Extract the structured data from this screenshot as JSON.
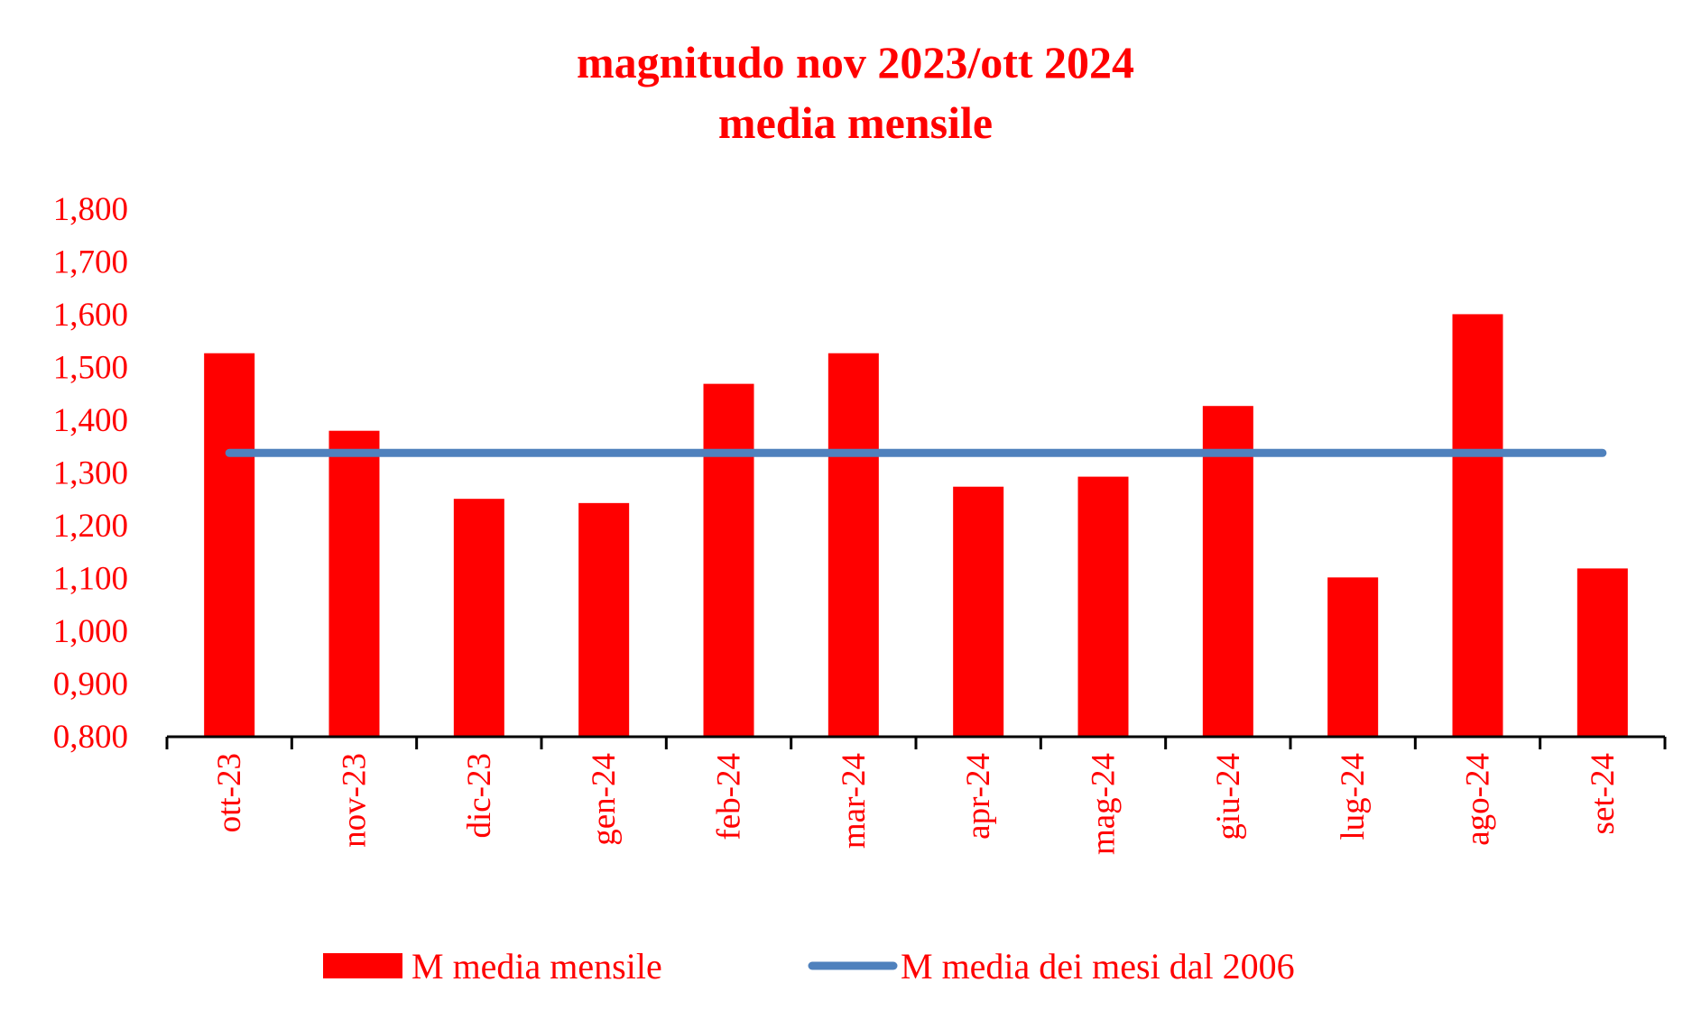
{
  "chart_data": {
    "type": "bar",
    "title": [
      "magnitudo nov 2023/ott 2024",
      "media mensile"
    ],
    "xlabel": "",
    "ylabel": "",
    "categories": [
      "ott-23",
      "nov-23",
      "dic-23",
      "gen-24",
      "feb-24",
      "mar-24",
      "apr-24",
      "mag-24",
      "giu-24",
      "lug-24",
      "ago-24",
      "set-24"
    ],
    "ylim": [
      0.8,
      1.8
    ],
    "yticks": [
      "0,800",
      "0,900",
      "1,000",
      "1,100",
      "1,200",
      "1,300",
      "1,400",
      "1,500",
      "1,600",
      "1,700",
      "1,800"
    ],
    "grid": false,
    "legend_position": "bottom",
    "series": [
      {
        "name": "M media mensile",
        "type": "bar",
        "color": "#ff0000",
        "values": [
          1.527,
          1.38,
          1.251,
          1.243,
          1.469,
          1.527,
          1.274,
          1.293,
          1.427,
          1.102,
          1.601,
          1.119
        ]
      },
      {
        "name": "M media dei mesi dal 2006",
        "type": "line",
        "color": "#4f81bd",
        "values": [
          1.338,
          1.338,
          1.338,
          1.338,
          1.338,
          1.338,
          1.338,
          1.338,
          1.338,
          1.338,
          1.338,
          1.338
        ]
      }
    ]
  }
}
